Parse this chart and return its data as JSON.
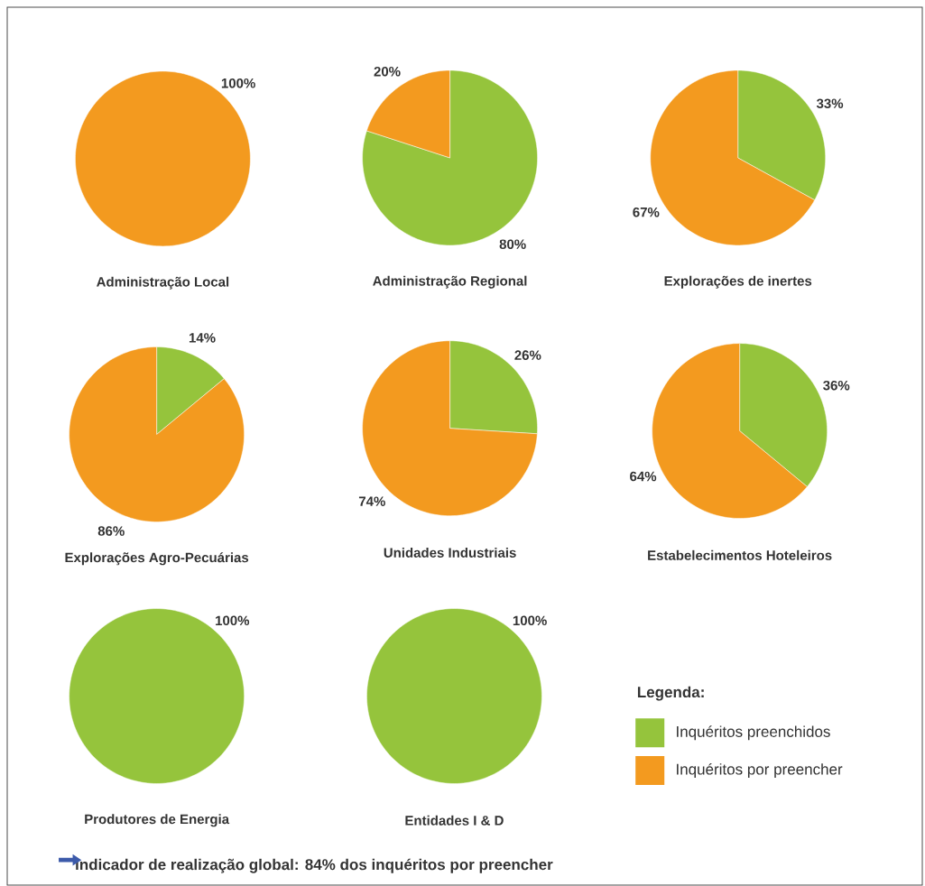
{
  "chart_data": [
    {
      "type": "pie",
      "title": "Administração Local",
      "categories": [
        null,
        null
      ],
      "values": [
        0,
        100
      ],
      "colors": [
        "#95c43c",
        "#f39a1f"
      ],
      "value_labels": [
        null,
        "100%"
      ]
    },
    {
      "type": "pie",
      "title": "Administração Regional",
      "categories": [
        null,
        null
      ],
      "values": [
        80,
        20
      ],
      "colors": [
        "#95c43c",
        "#f39a1f"
      ],
      "value_labels": [
        "80%",
        "20%"
      ]
    },
    {
      "type": "pie",
      "title": "Explorações de inertes",
      "categories": [
        null,
        null
      ],
      "values": [
        33,
        67
      ],
      "colors": [
        "#95c43c",
        "#f39a1f"
      ],
      "value_labels": [
        "33%",
        "67%"
      ]
    },
    {
      "type": "pie",
      "title": "Explorações Agro-Pecuárias",
      "categories": [
        null,
        null
      ],
      "values": [
        14,
        86
      ],
      "colors": [
        "#95c43c",
        "#f39a1f"
      ],
      "value_labels": [
        "14%",
        "86%"
      ]
    },
    {
      "type": "pie",
      "title": "Unidades Industriais",
      "categories": [
        null,
        null
      ],
      "values": [
        26,
        74
      ],
      "colors": [
        "#95c43c",
        "#f39a1f"
      ],
      "value_labels": [
        "26%",
        "74%"
      ]
    },
    {
      "type": "pie",
      "title": "Estabelecimentos Hoteleiros",
      "categories": [
        null,
        null
      ],
      "values": [
        36,
        64
      ],
      "colors": [
        "#95c43c",
        "#f39a1f"
      ],
      "value_labels": [
        "36%",
        "64%"
      ]
    },
    {
      "type": "pie",
      "title": "Produtores de Energia",
      "categories": [
        null,
        null
      ],
      "values": [
        100,
        0
      ],
      "colors": [
        "#95c43c",
        "#f39a1f"
      ],
      "value_labels": [
        "100%",
        null
      ]
    },
    {
      "type": "pie",
      "title": "Entidades I & D",
      "categories": [
        "Inquéritos preenchidos",
        "Inquéritos por preencher"
      ],
      "values": [
        100,
        0
      ],
      "colors": [
        "#95c43c",
        "#f39a1f"
      ],
      "value_labels": [
        "100%",
        null
      ],
      "legend": "right",
      "legend_title": "Legenda:",
      "annotations": [
        "indicador de realização global: 84% dos inquéritos por preencher"
      ]
    }
  ]
}
